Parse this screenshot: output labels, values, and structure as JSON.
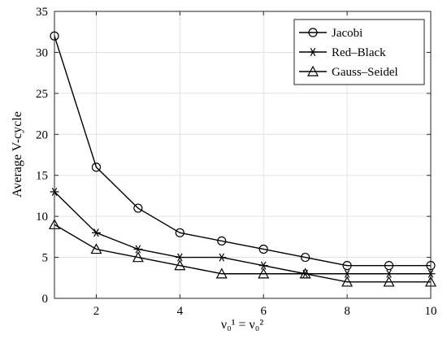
{
  "chart_data": {
    "type": "line",
    "xlabel": "ν₀¹ = ν₀²",
    "ylabel": "Average V-cycle",
    "xlim": [
      1,
      10
    ],
    "ylim": [
      0,
      35
    ],
    "xticks": [
      2,
      4,
      6,
      8,
      10
    ],
    "yticks": [
      0,
      5,
      10,
      15,
      20,
      25,
      30,
      35
    ],
    "grid": true,
    "legend_position": "top-right",
    "x": [
      1,
      2,
      3,
      4,
      5,
      6,
      7,
      8,
      9,
      10
    ],
    "series": [
      {
        "name": "Jacobi",
        "marker": "circle",
        "values": [
          32,
          16,
          11,
          8,
          7,
          6,
          5,
          4,
          4,
          4
        ]
      },
      {
        "name": "Red–Black",
        "marker": "asterisk",
        "values": [
          13,
          8,
          6,
          5,
          5,
          4,
          3,
          3,
          3,
          3
        ]
      },
      {
        "name": "Gauss–Seidel",
        "marker": "triangle",
        "values": [
          9,
          6,
          5,
          4,
          3,
          3,
          3,
          2,
          2,
          2
        ]
      }
    ]
  }
}
